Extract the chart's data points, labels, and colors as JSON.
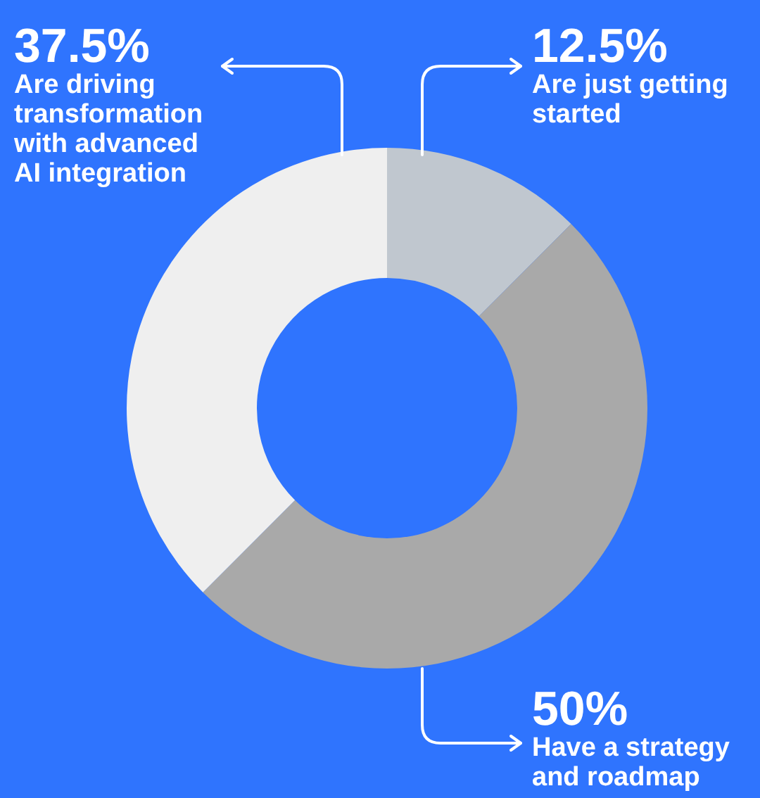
{
  "chart_data": {
    "type": "donut",
    "categories": [
      "Are just getting started",
      "Have a strategy and roadmap",
      "Are driving transformation with advanced AI integration"
    ],
    "values": [
      12.5,
      50,
      37.5
    ],
    "colors": [
      "#c0c7cf",
      "#a9a9a9",
      "#efefef"
    ],
    "value_labels": [
      "12.5%",
      "50%",
      "37.5%"
    ]
  }
}
